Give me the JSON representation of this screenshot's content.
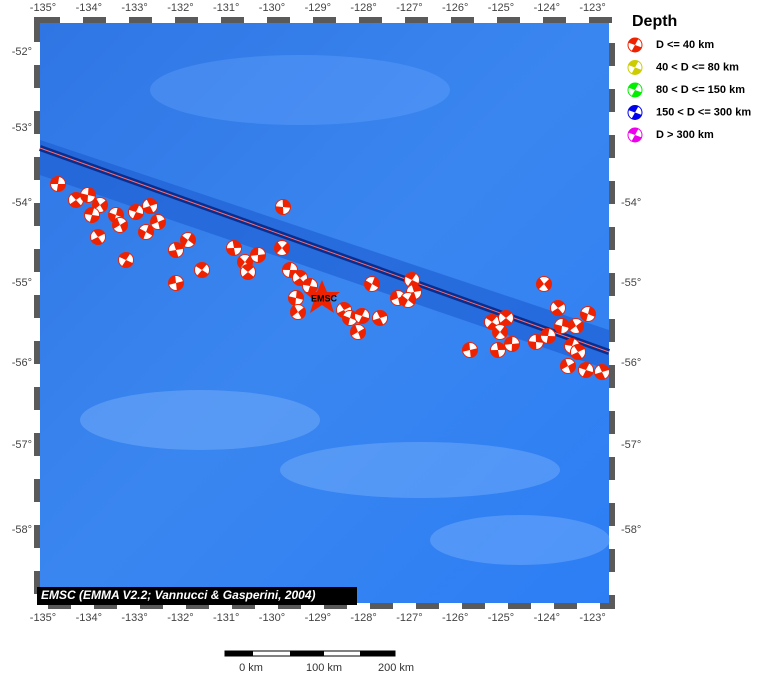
{
  "map": {
    "lon_labels": [
      "-135°",
      "-134°",
      "-133°",
      "-132°",
      "-131°",
      "-130°",
      "-129°",
      "-128°",
      "-127°",
      "-126°",
      "-125°",
      "-124°",
      "-123°"
    ],
    "lat_labels": [
      "-52°",
      "-53°",
      "-54°",
      "-55°",
      "-56°",
      "-57°",
      "-58°"
    ],
    "right_lat_labels": [
      "-54°",
      "-55°",
      "-56°",
      "-57°",
      "-58°"
    ],
    "legend": {
      "title": "Depth",
      "items": [
        {
          "label": "D <= 40 km",
          "color": "#ee2200"
        },
        {
          "label": "40 < D <= 80 km",
          "color": "#cccc00"
        },
        {
          "label": "80 < D <= 150 km",
          "color": "#00ee00"
        },
        {
          "label": "150 < D <= 300 km",
          "color": "#0000ee"
        },
        {
          "label": "D > 300 km",
          "color": "#ee00ee"
        }
      ]
    },
    "epicenter_label": "EMSC",
    "credit": "EMSC (EMMA V2.2; Vannucci & Gasperini, 2004)",
    "scale_labels": [
      "0 km",
      "100 km",
      "200 km"
    ]
  }
}
